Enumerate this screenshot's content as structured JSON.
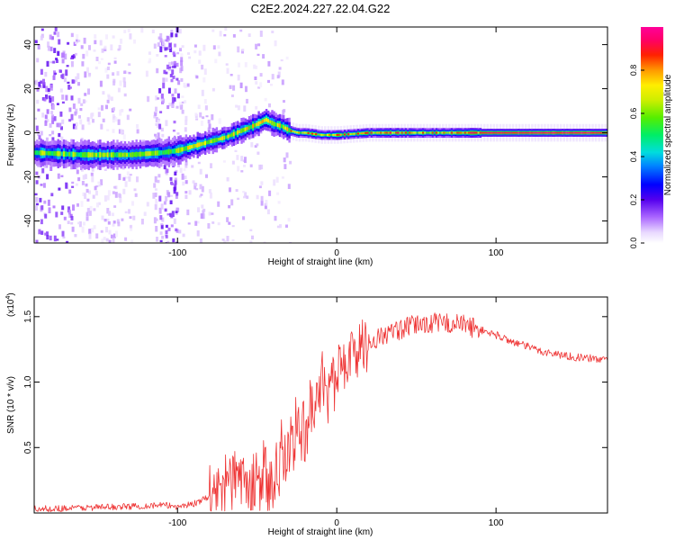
{
  "figure_title": "C2E2.2024.227.22.04.G22",
  "chart_data": [
    {
      "type": "heatmap",
      "title": "C2E2.2024.227.22.04.G22",
      "xlabel": "Height of straight line (km)",
      "ylabel": "Frequency (Hz)",
      "xlim": [
        -190,
        170
      ],
      "ylim": [
        -50,
        48
      ],
      "xticks": [
        -100,
        0,
        100
      ],
      "yticks": [
        -40,
        -20,
        0,
        20,
        40
      ],
      "colorbar": {
        "label": "Normalized spectral amplitude",
        "range": [
          0,
          1
        ],
        "ticks": [
          0.0,
          0.2,
          0.4,
          0.6,
          0.8
        ]
      },
      "ridge": {
        "x": [
          -190,
          -160,
          -130,
          -110,
          -100,
          -90,
          -80,
          -70,
          -60,
          -50,
          -45,
          -40,
          -35,
          -30,
          -25,
          -20,
          -10,
          0,
          20,
          50,
          80,
          100,
          130,
          170
        ],
        "freq": [
          -9,
          -10,
          -10,
          -9,
          -8,
          -6,
          -4,
          -2,
          1,
          4,
          6,
          4,
          3,
          1,
          0,
          0,
          -1,
          -1,
          0,
          0,
          0,
          0,
          0,
          0
        ]
      }
    },
    {
      "type": "line",
      "xlabel": "Height of straight line (km)",
      "ylabel": "SNR (10 * v/v)",
      "scale_label": "(x10",
      "scale_exponent": "4",
      "xlim": [
        -190,
        170
      ],
      "ylim": [
        0,
        1.65
      ],
      "xticks": [
        -100,
        0,
        100
      ],
      "yticks": [
        0.5,
        1.0,
        1.5
      ],
      "color": "#ee3333",
      "series": [
        {
          "x": [
            -190,
            -160,
            -130,
            -110,
            -100,
            -90,
            -80,
            -75,
            -70,
            -65,
            -60,
            -55,
            -50,
            -45,
            -40,
            -35,
            -30,
            -25,
            -20,
            -15,
            -10,
            -5,
            0,
            5,
            10,
            20,
            30,
            40,
            50,
            60,
            70,
            80,
            90,
            100,
            110,
            120,
            130,
            140,
            150,
            160,
            170
          ],
          "values": [
            0.03,
            0.04,
            0.05,
            0.06,
            0.05,
            0.07,
            0.12,
            0.18,
            0.25,
            0.28,
            0.24,
            0.2,
            0.18,
            0.22,
            0.28,
            0.35,
            0.5,
            0.62,
            0.7,
            0.8,
            0.95,
            1.02,
            1.08,
            1.15,
            1.22,
            1.3,
            1.36,
            1.4,
            1.44,
            1.45,
            1.45,
            1.44,
            1.4,
            1.36,
            1.31,
            1.27,
            1.23,
            1.21,
            1.19,
            1.18,
            1.17
          ]
        }
      ]
    }
  ]
}
